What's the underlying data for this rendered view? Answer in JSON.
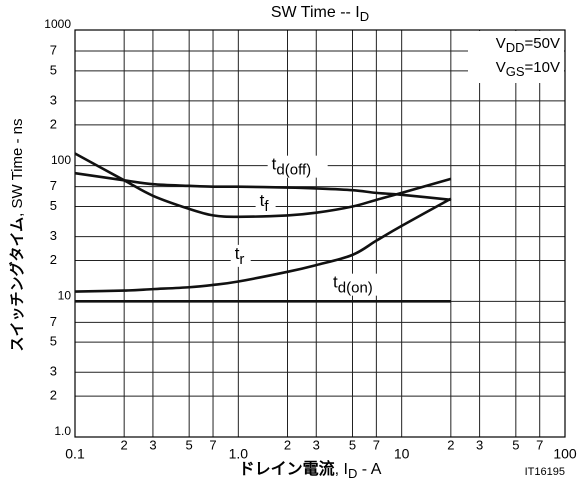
{
  "chart_data": {
    "type": "line",
    "title": [
      "SW Time  --  I",
      "D"
    ],
    "xlabel": [
      "ドレイン電流",
      ", I",
      "D",
      " - A"
    ],
    "ylabel": [
      "スイッチングタイム",
      ", SW Time - ns"
    ],
    "annotation": [
      [
        "V",
        "DD",
        "=50V"
      ],
      [
        "V",
        "GS",
        "=10V"
      ]
    ],
    "footnote": "IT16195",
    "log_x": true,
    "log_y": true,
    "grid": true,
    "color": "#111111",
    "xlim": [
      0.1,
      100
    ],
    "ylim": [
      1,
      1000
    ],
    "xticks": [
      {
        "value": 0.1,
        "label": "0.1"
      },
      {
        "value": 0.2,
        "label": "2"
      },
      {
        "value": 0.3,
        "label": "3"
      },
      {
        "value": 0.5,
        "label": "5"
      },
      {
        "value": 0.7,
        "label": "7"
      },
      {
        "value": 1,
        "label": "1.0"
      },
      {
        "value": 2,
        "label": "2"
      },
      {
        "value": 3,
        "label": "3"
      },
      {
        "value": 5,
        "label": "5"
      },
      {
        "value": 7,
        "label": "7"
      },
      10,
      {
        "value": 20,
        "label": "2"
      },
      {
        "value": 30,
        "label": "3"
      },
      {
        "value": 50,
        "label": "5"
      },
      {
        "value": 70,
        "label": "7"
      },
      100
    ],
    "yticks": [
      {
        "value": 1,
        "label": "1.0"
      },
      2,
      3,
      5,
      7,
      10,
      {
        "value": 20,
        "label": "2"
      },
      {
        "value": 30,
        "label": "3"
      },
      {
        "value": 50,
        "label": "5"
      },
      {
        "value": 70,
        "label": "7"
      },
      100,
      {
        "value": 200,
        "label": "2"
      },
      {
        "value": 300,
        "label": "3"
      },
      {
        "value": 500,
        "label": "5"
      },
      {
        "value": 700,
        "label": "7"
      },
      1000
    ],
    "x": [
      0.1,
      0.2,
      0.3,
      0.5,
      0.7,
      1,
      2,
      3,
      5,
      7,
      10,
      20
    ],
    "series": [
      {
        "label": [
          "t",
          "d(off)"
        ],
        "values": [
          88,
          78,
          73,
          71,
          70,
          70,
          69,
          68,
          66,
          63,
          61,
          56
        ]
      },
      {
        "label": [
          "t",
          "f"
        ],
        "values": [
          123,
          78,
          60,
          48,
          43,
          42,
          43,
          45,
          50,
          56,
          63,
          80
        ]
      },
      {
        "label": [
          "t",
          "r"
        ],
        "values": [
          11.8,
          12,
          12.3,
          12.7,
          13.2,
          14,
          16.5,
          18.5,
          22,
          28,
          36,
          57
        ]
      },
      {
        "label": [
          "t",
          "d(on)"
        ],
        "values": [
          10,
          10,
          10,
          10,
          10,
          10,
          10,
          10,
          10,
          10,
          10,
          10
        ]
      }
    ]
  }
}
